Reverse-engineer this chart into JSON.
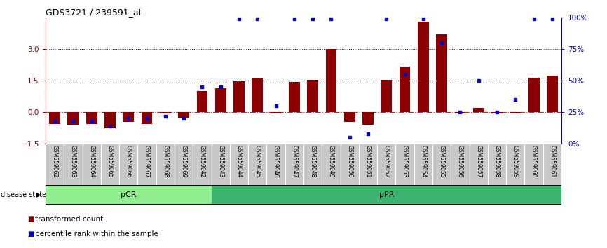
{
  "title": "GDS3721 / 239591_at",
  "samples": [
    "GSM559062",
    "GSM559063",
    "GSM559064",
    "GSM559065",
    "GSM559066",
    "GSM559067",
    "GSM559068",
    "GSM559069",
    "GSM559042",
    "GSM559043",
    "GSM559044",
    "GSM559045",
    "GSM559046",
    "GSM559047",
    "GSM559048",
    "GSM559049",
    "GSM559050",
    "GSM559051",
    "GSM559052",
    "GSM559053",
    "GSM559054",
    "GSM559055",
    "GSM559056",
    "GSM559057",
    "GSM559058",
    "GSM559059",
    "GSM559060",
    "GSM559061"
  ],
  "transformed_count": [
    -0.55,
    -0.6,
    -0.55,
    -0.75,
    -0.45,
    -0.55,
    -0.05,
    -0.25,
    1.0,
    1.15,
    1.48,
    1.6,
    -0.05,
    1.45,
    1.55,
    3.0,
    -0.45,
    -0.6,
    1.55,
    2.15,
    4.3,
    3.7,
    -0.05,
    0.2,
    -0.05,
    -0.05,
    1.65,
    1.75
  ],
  "percentile_rank": [
    18,
    18,
    18,
    14,
    20,
    20,
    22,
    20,
    45,
    45,
    99,
    99,
    30,
    99,
    99,
    99,
    5,
    8,
    99,
    55,
    99,
    80,
    25,
    50,
    25,
    35,
    99,
    99
  ],
  "pCR_count": 9,
  "pPR_count": 19,
  "bar_color": "#8B0000",
  "dot_color": "#0000CD",
  "ylim_left": [
    -1.5,
    4.5
  ],
  "ylim_right": [
    0,
    100
  ],
  "yticks_left": [
    -1.5,
    0,
    1.5,
    3
  ],
  "yticks_right": [
    0,
    25,
    50,
    75,
    100
  ],
  "pCR_color": "#90EE90",
  "pPR_color": "#3CB371",
  "disease_state_label": "disease state",
  "legend_transformed": "transformed count",
  "legend_percentile": "percentile rank within the sample"
}
